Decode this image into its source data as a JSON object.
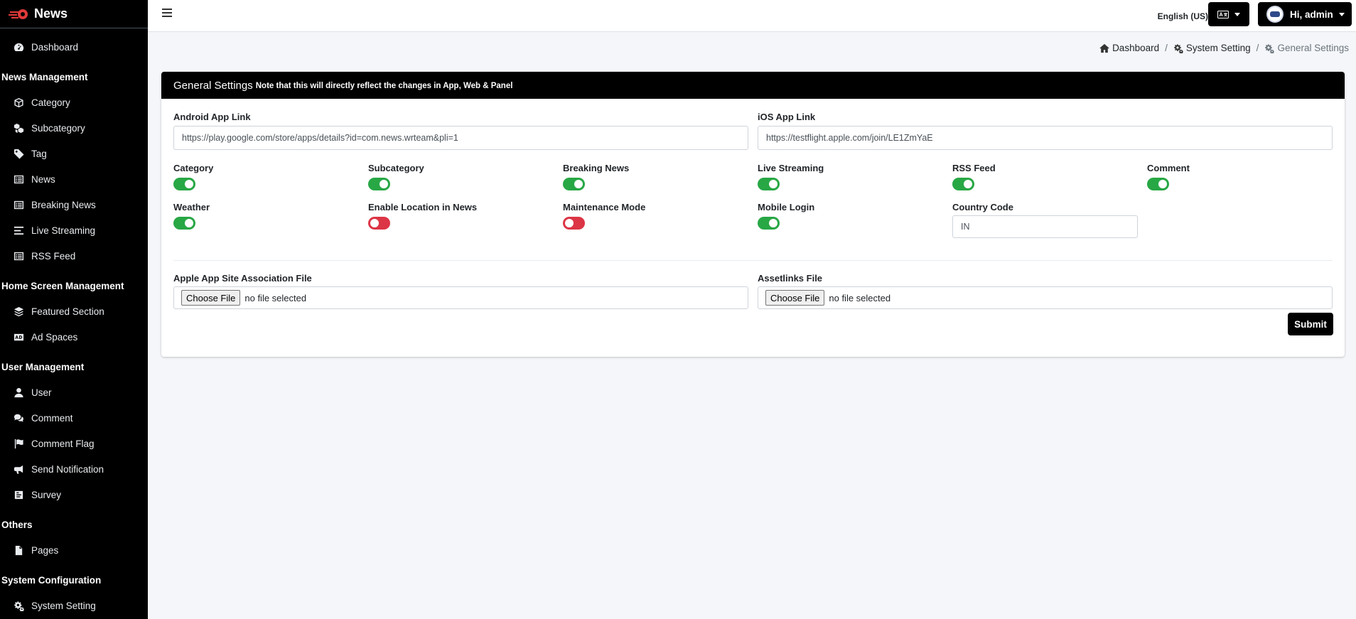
{
  "brand": {
    "name": "News"
  },
  "sidebar": {
    "dashboard": "Dashboard",
    "sections": [
      {
        "header": "News Management",
        "items": [
          "Category",
          "Subcategory",
          "Tag",
          "News",
          "Breaking News",
          "Live Streaming",
          "RSS Feed"
        ]
      },
      {
        "header": "Home Screen Management",
        "items": [
          "Featured Section",
          "Ad Spaces"
        ]
      },
      {
        "header": "User Management",
        "items": [
          "User",
          "Comment",
          "Comment Flag",
          "Send Notification",
          "Survey"
        ]
      },
      {
        "header": "Others",
        "items": [
          "Pages"
        ]
      },
      {
        "header": "System Configuration",
        "items": [
          "System Setting"
        ]
      }
    ]
  },
  "topbar": {
    "language": "English (US)",
    "user_greeting": "Hi, admin"
  },
  "breadcrumb": {
    "items": [
      "Dashboard",
      "System Setting",
      "General Settings"
    ]
  },
  "card": {
    "title": "General Settings",
    "note": "Note that this will directly reflect the changes in App, Web & Panel",
    "android_label": "Android App Link",
    "android_value": "https://play.google.com/store/apps/details?id=com.news.wrteam&pli=1",
    "ios_label": "iOS App Link",
    "ios_value": "https://testflight.apple.com/join/LE1ZmYaE",
    "toggles": [
      {
        "label": "Category",
        "on": true
      },
      {
        "label": "Subcategory",
        "on": true
      },
      {
        "label": "Breaking News",
        "on": true
      },
      {
        "label": "Live Streaming",
        "on": true
      },
      {
        "label": "RSS Feed",
        "on": true
      },
      {
        "label": "Comment",
        "on": true
      },
      {
        "label": "Weather",
        "on": true
      },
      {
        "label": "Enable Location in News",
        "on": false
      },
      {
        "label": "Maintenance Mode",
        "on": false
      },
      {
        "label": "Mobile Login",
        "on": true
      }
    ],
    "country_code_label": "Country Code",
    "country_code_value": "IN",
    "apple_file_label": "Apple App Site Association File",
    "assetlinks_label": "Assetlinks File",
    "choose_file": "Choose File",
    "no_file": "no file selected",
    "submit": "Submit"
  },
  "colors": {
    "toggle_on": "#28a745",
    "toggle_off": "#dc3545",
    "sidebar_bg": "#000000",
    "header_bg": "#000000"
  }
}
